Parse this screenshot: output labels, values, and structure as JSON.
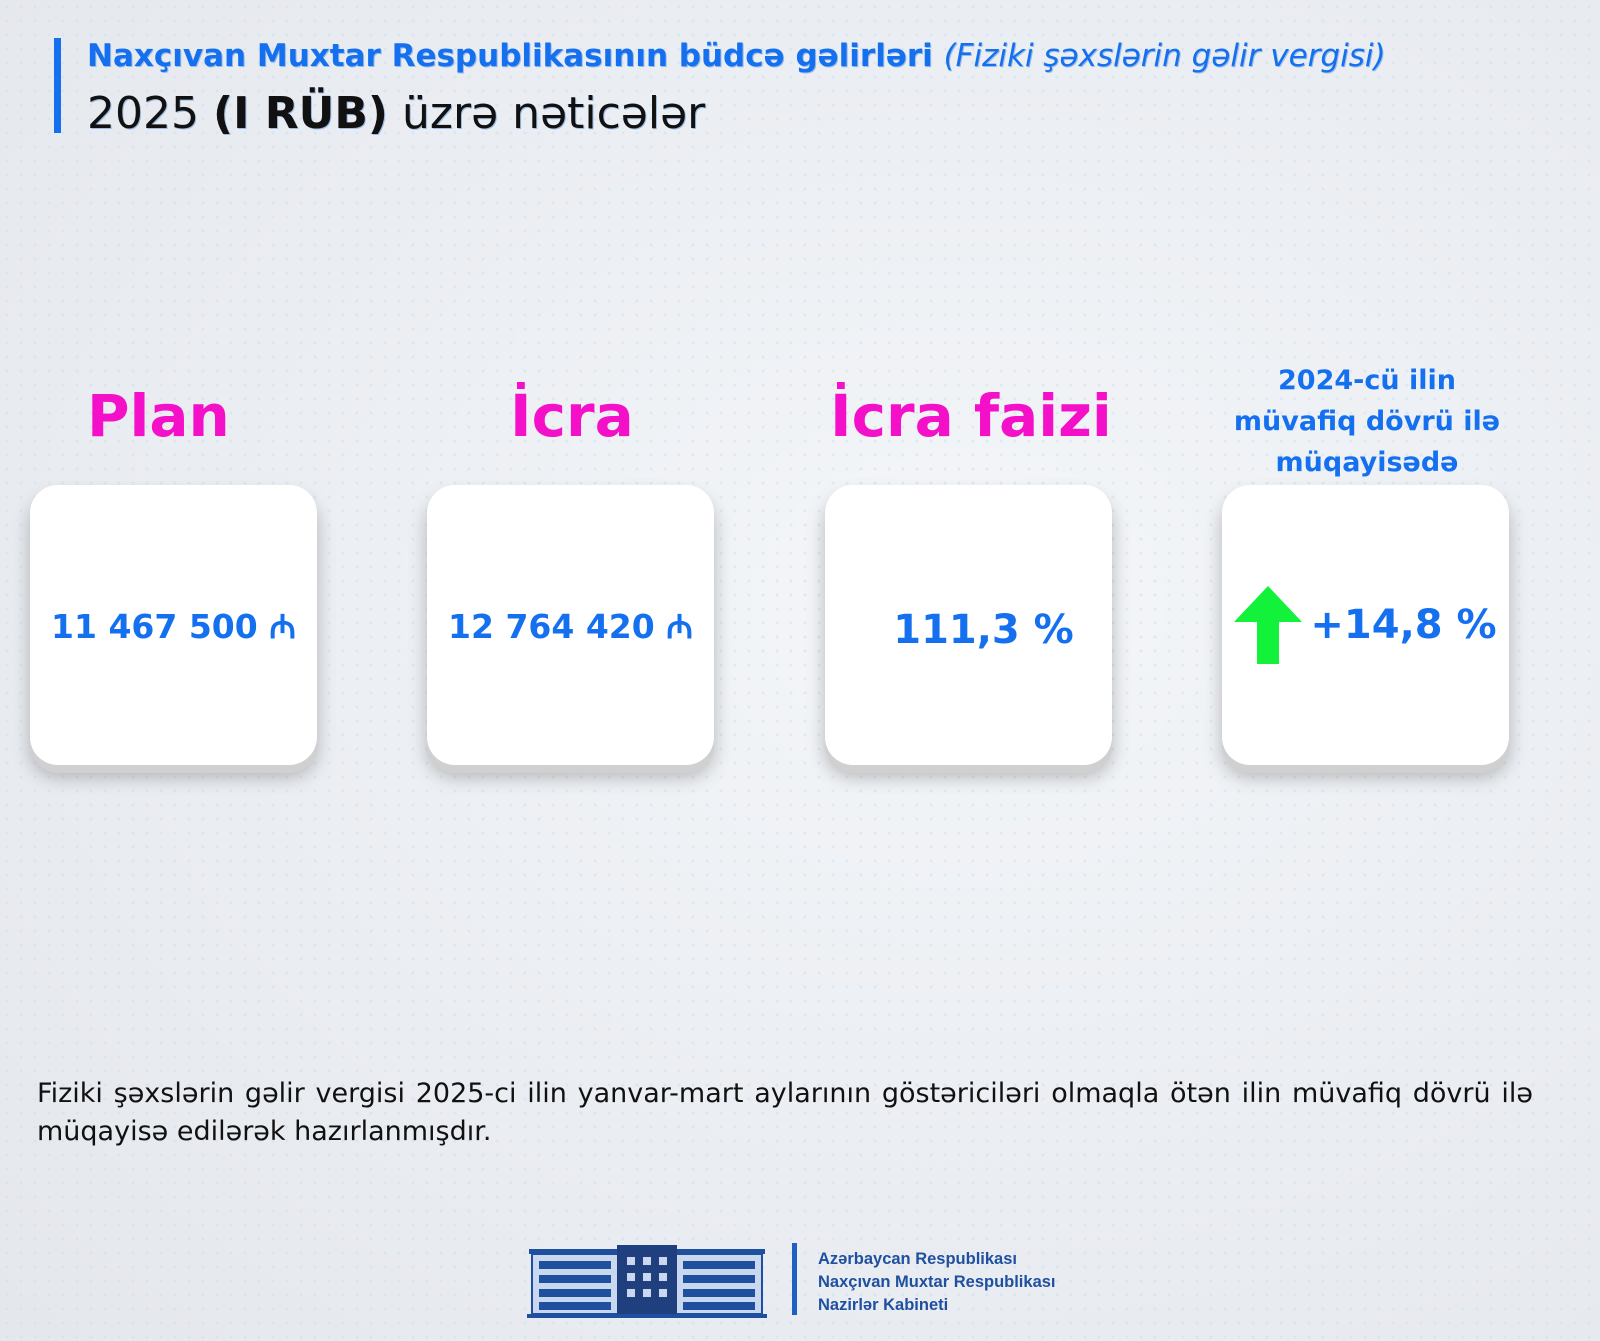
{
  "header": {
    "title_main": "Naxçıvan Muxtar Respublikasının büdcə gəlirləri",
    "title_sub": "(Fiziki şəxslərin gəlir vergisi)",
    "year": "2025",
    "period": "(I RÜB)",
    "suffix": "üzrə nəticələr"
  },
  "metrics": [
    {
      "label": "Plan",
      "value": "11 467 500 ₼"
    },
    {
      "label": "İcra",
      "value": "12 764 420 ₼"
    },
    {
      "label": "İcra faizi",
      "value": "111,3 %"
    },
    {
      "label_lines": [
        "2024-cü ilin",
        "müvafiq dövrü ilə",
        "müqayisədə"
      ],
      "value": "+14,8 %",
      "icon": "arrow-up-icon",
      "icon_color": "#12f23a"
    }
  ],
  "description": "Fiziki şəxslərin gəlir vergisi 2025-ci ilin yanvar-mart aylarının göstəriciləri olmaqla ötən ilin müvafiq dövrü ilə müqayisə edilərək hazırlanmışdır.",
  "footer": {
    "lines": [
      "Azərbaycan Respublikası",
      "Naxçıvan Muxtar Respublikası",
      "Nazirlər Kabineti"
    ]
  },
  "colors": {
    "accent": "#1570ef",
    "heading": "#f40fc8",
    "up": "#12f23a"
  }
}
